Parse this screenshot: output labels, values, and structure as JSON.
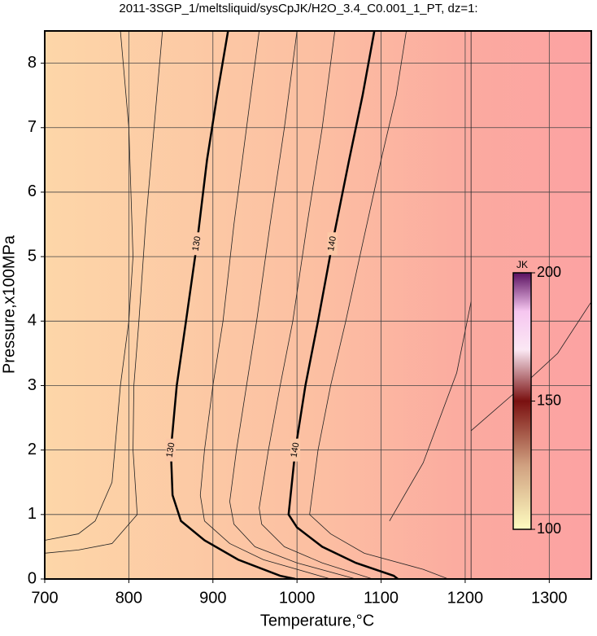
{
  "chart_data": {
    "type": "contour",
    "title": "2011-3SGP_1/meltsliquid/sysCpJK/H2O_3.4_C0.001_1_PT, dz=1:",
    "xlabel": "Temperature,°C",
    "ylabel": "Pressure,x100MPa",
    "xlim": [
      700,
      1350
    ],
    "ylim": [
      0,
      8.5
    ],
    "xticks": [
      700,
      800,
      900,
      1000,
      1100,
      1200,
      1300
    ],
    "yticks": [
      0,
      1,
      2,
      3,
      4,
      5,
      6,
      7,
      8
    ],
    "grid": true,
    "series": [
      {
        "name": "130",
        "color": "#000000",
        "x": [
          918,
          905,
          893,
          881,
          868,
          857,
          850,
          852,
          862,
          890,
          930,
          980,
          998
        ],
        "values": [
          8.5,
          7.5,
          6.5,
          5.2,
          4,
          3,
          2,
          1.3,
          0.9,
          0.6,
          0.3,
          0.05,
          0
        ]
      },
      {
        "name": "140",
        "color": "#000000",
        "x": [
          1092,
          1078,
          1062,
          1042,
          1025,
          1010,
          998,
          990,
          1000,
          1030,
          1070,
          1115,
          1120
        ],
        "values": [
          8.5,
          7.5,
          6.5,
          5.2,
          4,
          3,
          2,
          1,
          0.8,
          0.5,
          0.25,
          0.05,
          0
        ]
      }
    ],
    "thin_contours": [
      {
        "x": [
          790,
          800,
          805,
          800,
          790,
          780,
          760,
          740,
          700
        ],
        "values": [
          8.5,
          7,
          5,
          4,
          3,
          1.5,
          0.9,
          0.7,
          0.6
        ]
      },
      {
        "x": [
          840,
          830,
          820,
          812,
          806,
          805,
          810,
          780,
          740,
          700
        ],
        "values": [
          8.5,
          7,
          5.5,
          4,
          3,
          2,
          1,
          0.55,
          0.45,
          0.4
        ]
      },
      {
        "x": [
          955,
          940,
          925,
          912,
          900,
          890,
          885,
          890,
          920,
          960,
          1040
        ],
        "values": [
          8.5,
          7,
          5.5,
          4,
          3,
          2,
          1.3,
          0.9,
          0.55,
          0.3,
          0
        ]
      },
      {
        "x": [
          1000,
          985,
          968,
          952,
          940,
          928,
          920,
          925,
          950,
          1000,
          1070
        ],
        "values": [
          8.5,
          7,
          5.5,
          4,
          3,
          2,
          1.2,
          0.85,
          0.5,
          0.25,
          0
        ]
      },
      {
        "x": [
          1045,
          1030,
          1012,
          995,
          980,
          966,
          955,
          958,
          985,
          1030,
          1090
        ],
        "values": [
          8.5,
          7,
          5.5,
          4,
          3,
          2,
          1.1,
          0.85,
          0.5,
          0.25,
          0
        ]
      },
      {
        "x": [
          1130,
          1118,
          1100,
          1078,
          1058,
          1040,
          1025,
          1015,
          1040,
          1080,
          1150,
          1180
        ],
        "values": [
          8.5,
          7.5,
          6.5,
          5.2,
          4,
          3,
          2,
          1,
          0.7,
          0.4,
          0.15,
          0
        ]
      },
      {
        "x": [
          1207,
          1207
        ],
        "values": [
          0,
          8.5
        ]
      },
      {
        "x": [
          1207,
          1260,
          1310,
          1350
        ],
        "values": [
          2.3,
          2.9,
          3.5,
          4.3
        ]
      },
      {
        "x": [
          1110,
          1150,
          1190,
          1207
        ],
        "values": [
          0.9,
          1.8,
          3.2,
          4.3
        ]
      }
    ],
    "colorbar": {
      "label": "JK",
      "lim": [
        100,
        200
      ],
      "ticks": [
        100,
        150,
        200
      ]
    }
  }
}
